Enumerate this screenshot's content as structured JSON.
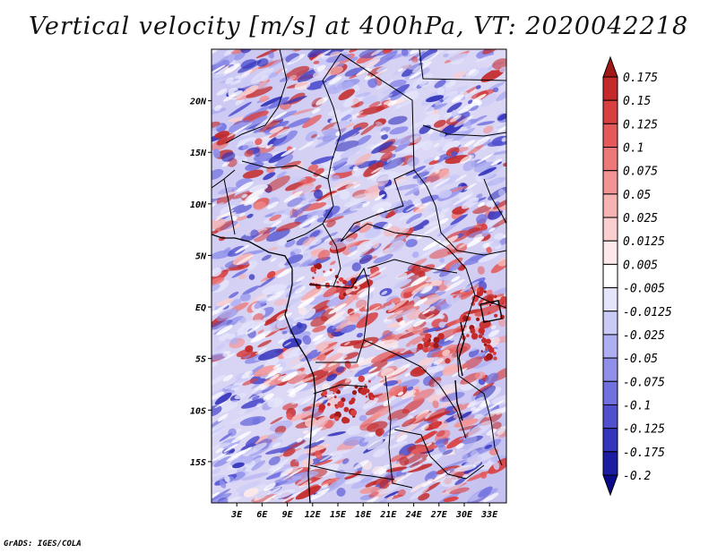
{
  "title": "Vertical velocity [m/s] at 400hPa, VT: 2020042218",
  "footer": "GrADS: IGES/COLA",
  "map": {
    "lat_labels": [
      "20N",
      "15N",
      "10N",
      "5N",
      "EQ",
      "5S",
      "10S",
      "15S"
    ],
    "lat_values": [
      20,
      15,
      10,
      5,
      0,
      -5,
      -10,
      -15
    ],
    "lon_labels": [
      "3E",
      "6E",
      "9E",
      "12E",
      "15E",
      "18E",
      "21E",
      "24E",
      "27E",
      "30E",
      "33E"
    ],
    "lon_values": [
      3,
      6,
      9,
      12,
      15,
      18,
      21,
      24,
      27,
      30,
      33
    ],
    "lon_range": [
      0,
      35
    ],
    "lat_range": [
      -19,
      25
    ]
  },
  "colorbar": {
    "levels": [
      "0.175",
      "0.15",
      "0.125",
      "0.1",
      "0.075",
      "0.05",
      "0.025",
      "0.0125",
      "0.005",
      "-0.005",
      "-0.0125",
      "-0.025",
      "-0.05",
      "-0.075",
      "-0.1",
      "-0.125",
      "-0.175",
      "-0.2"
    ],
    "colors": [
      "#a01818",
      "#c42a2a",
      "#d84040",
      "#e45a5a",
      "#ec7878",
      "#f39494",
      "#f7b2b2",
      "#fbcfcf",
      "#fde9e9",
      "#ffffff",
      "#e4e4fb",
      "#cacaf7",
      "#aeaef2",
      "#9090ea",
      "#7070df",
      "#5050cf",
      "#3434bc",
      "#1c1ca3",
      "#0a0a8a"
    ]
  }
}
